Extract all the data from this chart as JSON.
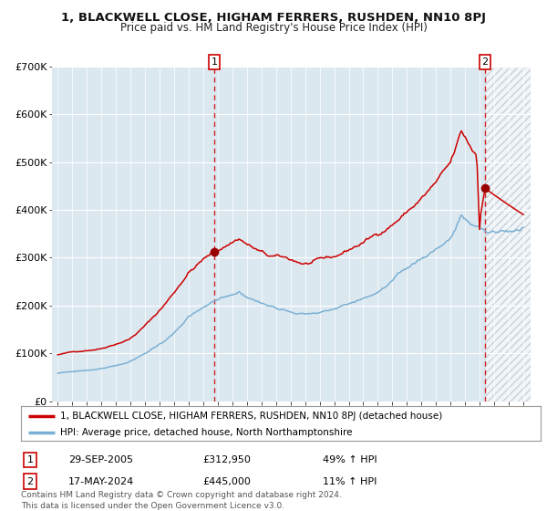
{
  "title": "1, BLACKWELL CLOSE, HIGHAM FERRERS, RUSHDEN, NN10 8PJ",
  "subtitle": "Price paid vs. HM Land Registry's House Price Index (HPI)",
  "red_legend": "1, BLACKWELL CLOSE, HIGHAM FERRERS, RUSHDEN, NN10 8PJ (detached house)",
  "blue_legend": "HPI: Average price, detached house, North Northamptonshire",
  "transaction1_date": "29-SEP-2005",
  "transaction1_price": "£312,950",
  "transaction1_hpi": "49% ↑ HPI",
  "transaction2_date": "17-MAY-2024",
  "transaction2_price": "£445,000",
  "transaction2_hpi": "11% ↑ HPI",
  "footer": "Contains HM Land Registry data © Crown copyright and database right 2024.\nThis data is licensed under the Open Government Licence v3.0.",
  "ylim": [
    0,
    700000
  ],
  "yticks": [
    0,
    100000,
    200000,
    300000,
    400000,
    500000,
    600000,
    700000
  ],
  "ytick_labels": [
    "£0",
    "£100K",
    "£200K",
    "£300K",
    "£400K",
    "£500K",
    "£600K",
    "£700K"
  ],
  "plot_bg": "#dce8f0",
  "vline1_x": 2005.75,
  "vline2_x": 2024.37,
  "marker1_x": 2005.75,
  "marker1_y": 312950,
  "marker2_x": 2024.37,
  "marker2_y": 445000,
  "grid_color": "#ffffff",
  "red_color": "#cc0000",
  "blue_color": "#7ab0d4",
  "xmin": 1994.6,
  "xmax": 2027.5
}
